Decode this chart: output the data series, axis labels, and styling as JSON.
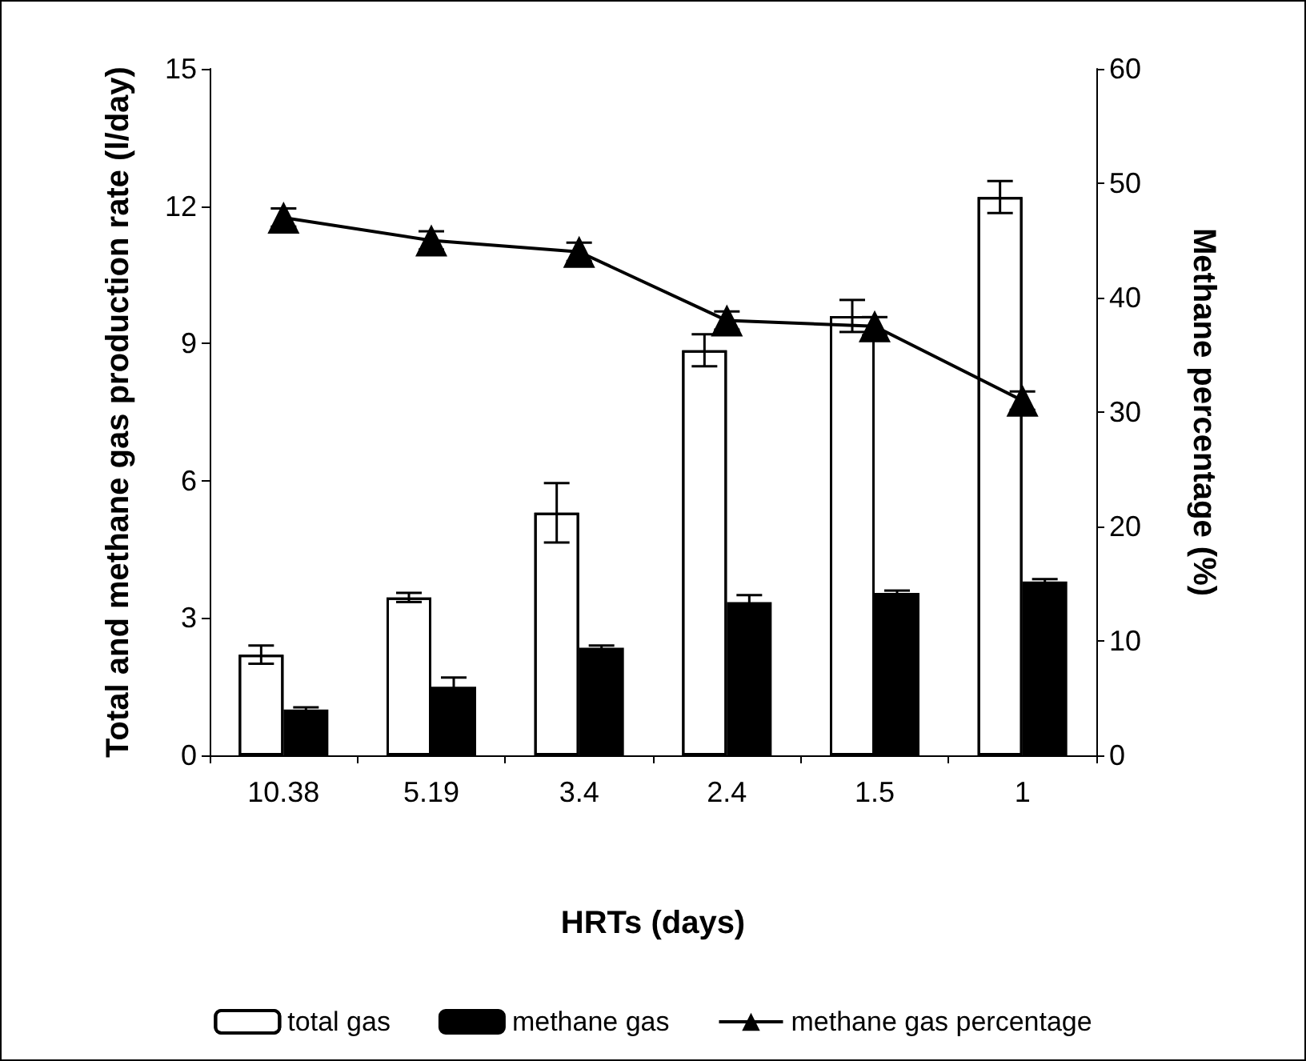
{
  "chart_data": {
    "type": "bar",
    "xlabel": "HRTs (days)",
    "ylabel": "Total and methane gas production rate (l/day)",
    "y2label": "Methane percentage (%)",
    "categories": [
      "10.38",
      "5.19",
      "3.4",
      "2.4",
      "1.5",
      "1"
    ],
    "series": [
      {
        "name": "total gas",
        "color": "#ffffff",
        "values": [
          2.2,
          3.45,
          5.3,
          8.85,
          9.6,
          12.2
        ],
        "errors": [
          0.2,
          0.1,
          0.65,
          0.35,
          0.35,
          0.35
        ]
      },
      {
        "name": "methane gas",
        "color": "#000000",
        "values": [
          1.0,
          1.5,
          2.35,
          3.35,
          3.55,
          3.8
        ],
        "errors": [
          0.05,
          0.2,
          0.05,
          0.15,
          0.05,
          0.05
        ]
      },
      {
        "name": "methane gas percentage",
        "type": "line",
        "axis": "y2",
        "color": "#000000",
        "marker": "triangle",
        "values": [
          47,
          45,
          44,
          38,
          37.5,
          31
        ],
        "errors": [
          0.8,
          0.8,
          0.8,
          0.8,
          0.8,
          0.8
        ]
      }
    ],
    "ylim": [
      0,
      15
    ],
    "yticks": [
      0,
      3,
      6,
      9,
      12,
      15
    ],
    "y2lim": [
      0,
      60
    ],
    "y2ticks": [
      0,
      10,
      20,
      30,
      40,
      50,
      60
    ],
    "grid": false,
    "legend": "bottom"
  }
}
